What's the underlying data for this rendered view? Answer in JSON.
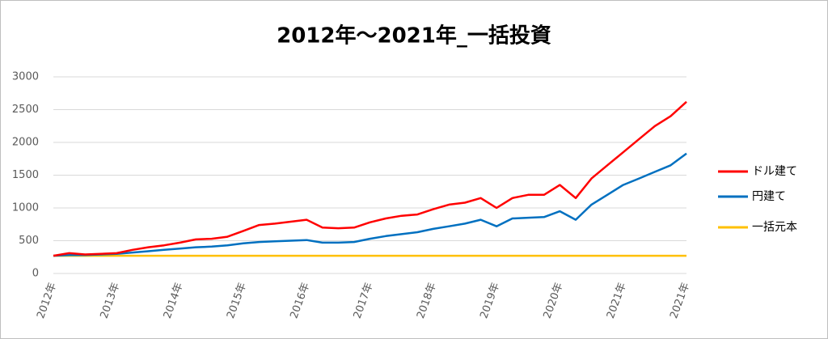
{
  "chart_data": {
    "type": "line",
    "title": "2012年～2021年_一括投資",
    "categories": [
      "2012年",
      null,
      null,
      null,
      "2013年",
      null,
      null,
      null,
      "2014年",
      null,
      null,
      null,
      "2015年",
      null,
      null,
      null,
      "2016年",
      null,
      null,
      null,
      "2017年",
      null,
      null,
      null,
      "2018年",
      null,
      null,
      null,
      "2019年",
      null,
      null,
      null,
      "2020年",
      null,
      null,
      null,
      "2021年",
      null,
      null,
      null,
      "2021年"
    ],
    "series": [
      {
        "name": "ドル建て",
        "color": "#ff0000",
        "values": [
          270,
          310,
          290,
          300,
          310,
          360,
          400,
          430,
          470,
          520,
          530,
          560,
          650,
          740,
          760,
          790,
          820,
          700,
          690,
          700,
          780,
          840,
          880,
          900,
          980,
          1050,
          1080,
          1150,
          1000,
          1150,
          1200,
          1200,
          1350,
          1150,
          1450,
          1650,
          1850,
          2050,
          2250,
          2400,
          2620
        ]
      },
      {
        "name": "円建て",
        "color": "#0070c0",
        "values": [
          270,
          280,
          280,
          290,
          300,
          320,
          340,
          360,
          380,
          400,
          410,
          430,
          460,
          480,
          490,
          500,
          510,
          470,
          470,
          480,
          530,
          570,
          600,
          630,
          680,
          720,
          760,
          820,
          720,
          840,
          850,
          860,
          950,
          820,
          1050,
          1200,
          1350,
          1450,
          1550,
          1650,
          1830
        ]
      },
      {
        "name": "一括元本",
        "color": "#ffc000",
        "values": [
          270,
          270,
          270,
          270,
          270,
          270,
          270,
          270,
          270,
          270,
          270,
          270,
          270,
          270,
          270,
          270,
          270,
          270,
          270,
          270,
          270,
          270,
          270,
          270,
          270,
          270,
          270,
          270,
          270,
          270,
          270,
          270,
          270,
          270,
          270,
          270,
          270,
          270,
          270,
          270,
          270
        ]
      }
    ],
    "ylim": [
      0,
      3000
    ],
    "yticks": [
      0,
      500,
      1000,
      1500,
      2000,
      2500,
      3000
    ],
    "grid": true,
    "legend": "right"
  }
}
